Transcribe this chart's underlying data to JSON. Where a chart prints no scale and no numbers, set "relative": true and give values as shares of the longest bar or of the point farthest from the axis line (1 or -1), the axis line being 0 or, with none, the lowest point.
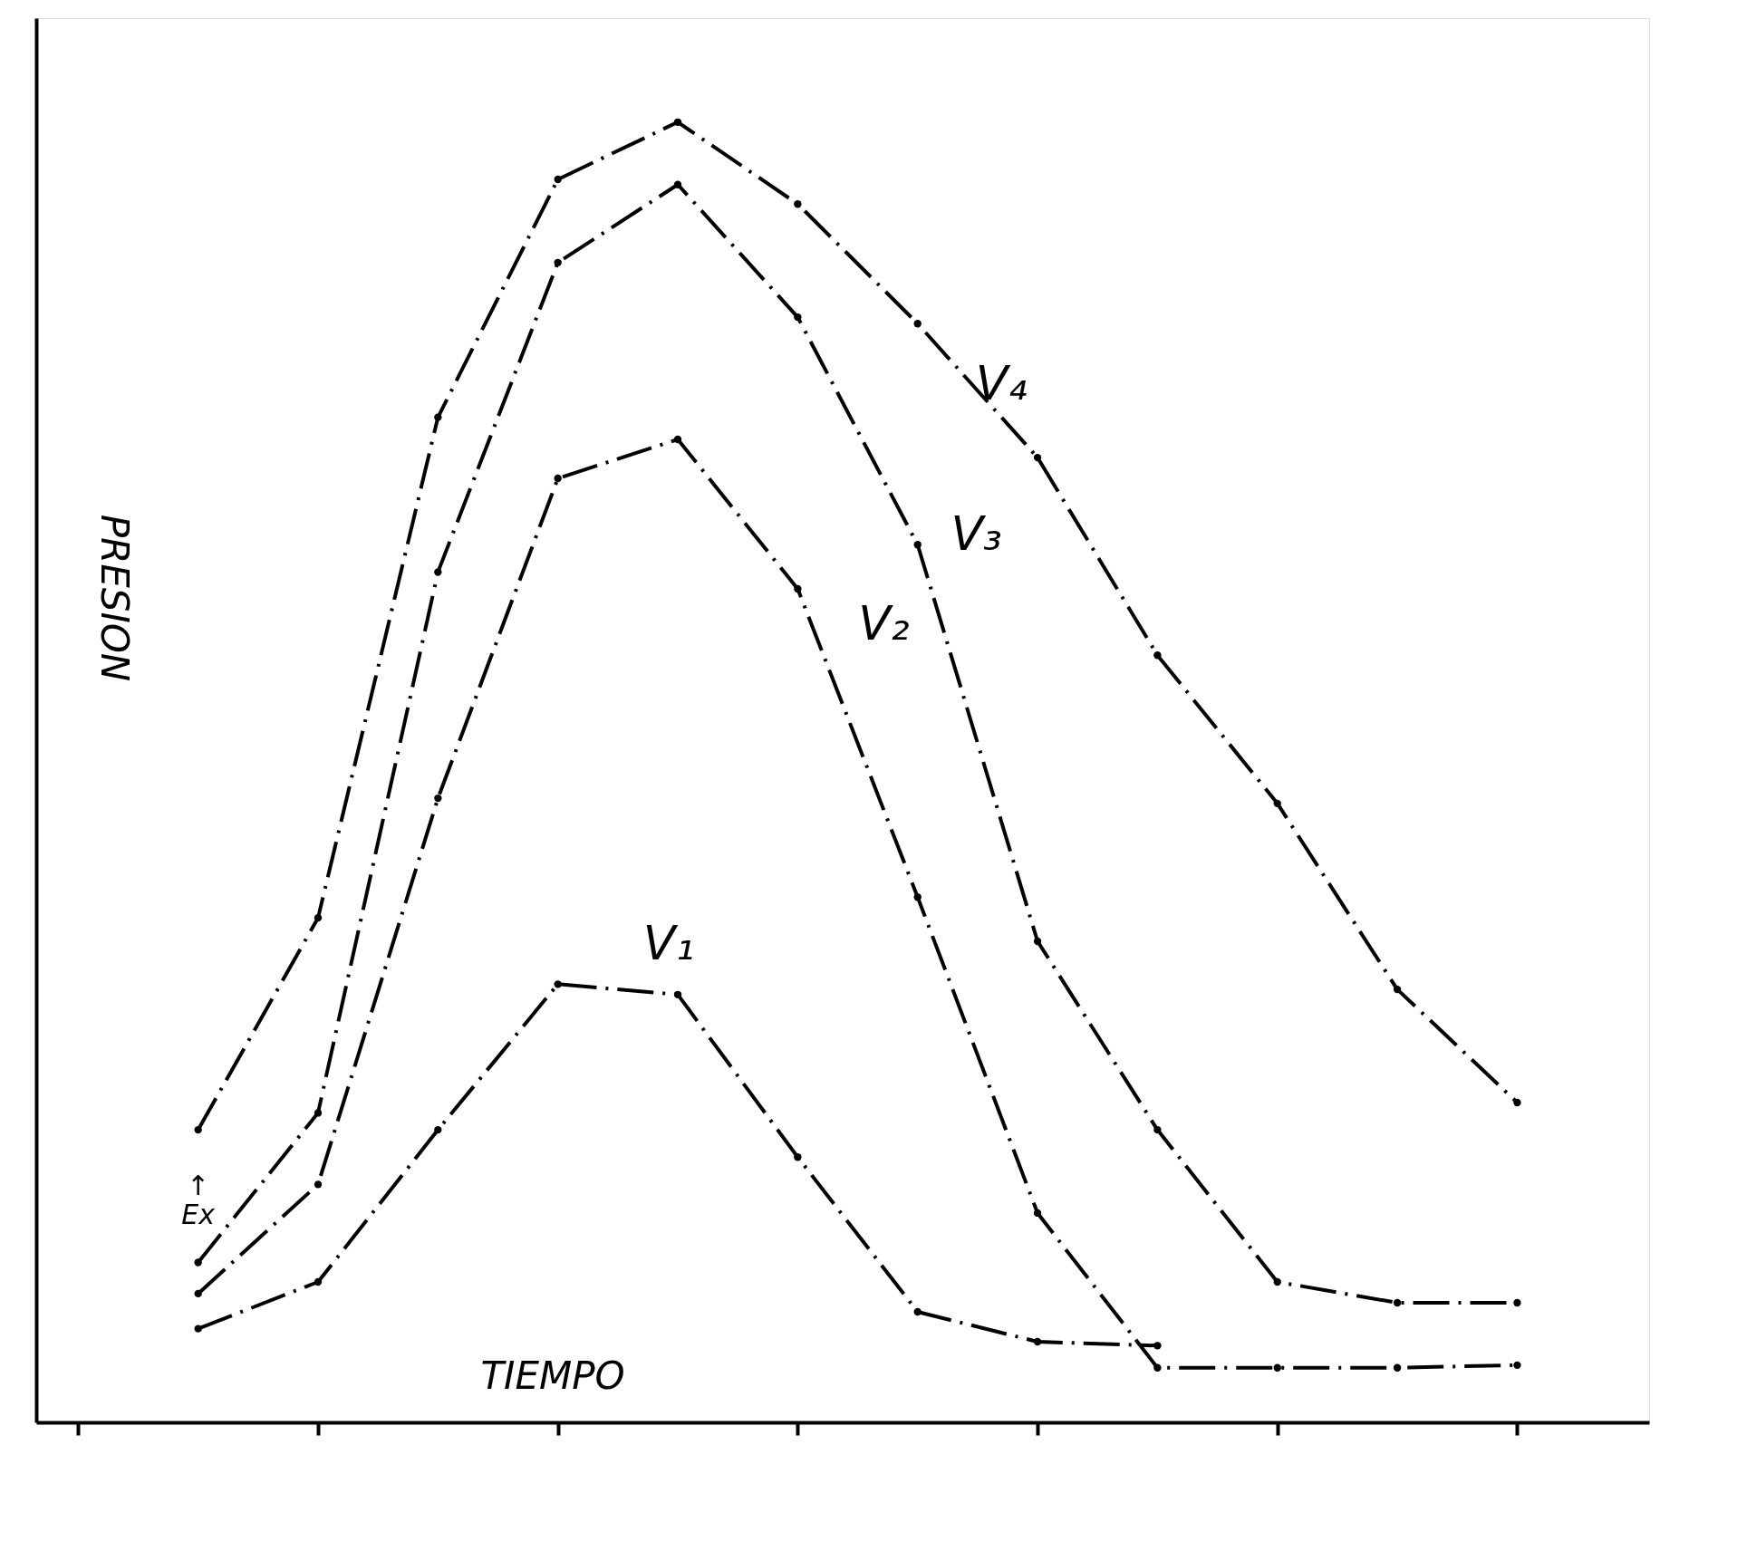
{
  "chart_data": {
    "type": "line",
    "relative": true,
    "xlabel": "TIEMPO",
    "ylabel": "PRESION",
    "categories": [
      null,
      null,
      null,
      null,
      null,
      null,
      null,
      null,
      null,
      null,
      null,
      null,
      null
    ],
    "series": [
      {
        "name": "V₁",
        "color": "#000000",
        "values": [
          null,
          0.072,
          0.108,
          0.225,
          0.337,
          0.329,
          0.204,
          0.085,
          0.062,
          0.059,
          null,
          null,
          null
        ]
      },
      {
        "name": "V₂",
        "color": "#000000",
        "values": [
          null,
          0.099,
          0.183,
          0.48,
          0.726,
          0.756,
          0.641,
          0.404,
          0.161,
          0.042,
          0.042,
          0.042,
          0.044
        ]
      },
      {
        "name": "V₃",
        "color": "#000000",
        "values": [
          null,
          0.123,
          0.238,
          0.654,
          0.892,
          0.952,
          0.85,
          0.675,
          0.37,
          0.225,
          0.108,
          0.092,
          0.092
        ]
      },
      {
        "name": "V₄",
        "color": "#000000",
        "values": [
          null,
          0.225,
          0.388,
          0.773,
          0.956,
          1,
          0.937,
          0.845,
          0.742,
          0.59,
          0.476,
          0.333,
          0.246
        ]
      }
    ],
    "annotations": [
      "↑\nEx"
    ],
    "marker": "circle",
    "line_style": "dashed",
    "grid": false
  }
}
